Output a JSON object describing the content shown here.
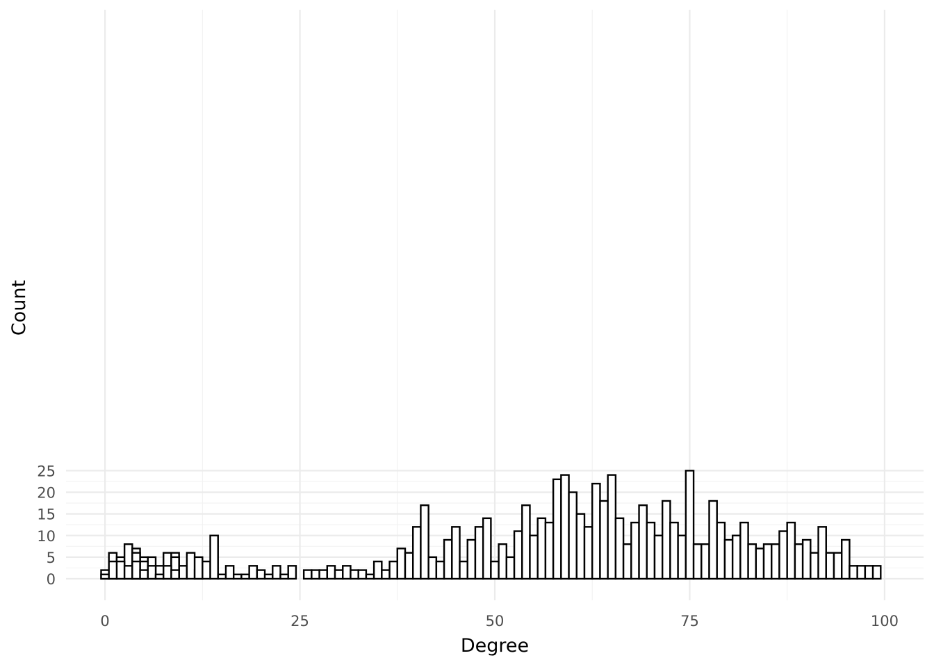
{
  "chart_data": {
    "type": "bar",
    "subtype": "histogram",
    "title": "",
    "xlabel": "Degree",
    "ylabel": "Count",
    "xlim": [
      -5,
      105
    ],
    "ylim": [
      0,
      25.6
    ],
    "x_ticks": [
      0,
      25,
      50,
      75,
      100
    ],
    "x_tick_labels": [
      "0",
      "25",
      "50",
      "75",
      "100"
    ],
    "y_ticks": [
      0,
      5,
      10,
      15,
      20,
      25
    ],
    "y_tick_labels": [
      "0",
      "5",
      "10",
      "15",
      "20",
      "25"
    ],
    "grid": true,
    "legend": "none",
    "bar_fill": "#ffffff",
    "bar_outline": "#000000",
    "series": [
      {
        "bin_width": 1,
        "x": [
          0,
          1,
          2,
          3,
          4,
          5,
          6,
          7,
          8,
          9,
          10,
          11,
          12,
          13,
          14,
          15,
          16,
          17,
          18,
          19,
          20,
          21,
          22,
          23,
          24,
          25,
          26,
          27,
          28,
          29,
          30,
          31,
          32,
          33,
          34,
          35,
          36,
          37,
          38,
          39,
          40,
          41,
          42,
          43,
          44,
          45,
          46,
          47,
          48,
          49,
          50,
          51,
          52,
          53,
          54,
          55,
          56,
          57,
          58,
          59,
          60,
          61,
          62,
          63,
          64,
          65,
          66,
          67,
          68,
          69,
          70,
          71,
          72,
          73,
          74,
          75,
          76,
          77,
          78,
          79,
          80,
          81,
          82,
          83,
          84,
          85,
          86,
          87,
          88,
          89,
          90,
          91,
          92,
          93,
          94,
          95,
          96,
          97,
          98,
          99
        ],
        "values": [
          2,
          6,
          5,
          8,
          7,
          5,
          5,
          3,
          6,
          6,
          3,
          6,
          2,
          4,
          10,
          1,
          3,
          1,
          1,
          3,
          2,
          1,
          3,
          1,
          3,
          0,
          2,
          2,
          2,
          3,
          2,
          3,
          2,
          2,
          1,
          4,
          2,
          4,
          7,
          6,
          12,
          17,
          5,
          4,
          9,
          12,
          4,
          9,
          12,
          14,
          4,
          8,
          5,
          11,
          17,
          10,
          14,
          13,
          23,
          24,
          20,
          15,
          12,
          22,
          18,
          24,
          14,
          8,
          13,
          17,
          13,
          10,
          18,
          13,
          10,
          25,
          8,
          8,
          18,
          13,
          9,
          10,
          13,
          8,
          7,
          8,
          8,
          11,
          13,
          8,
          9,
          6,
          12,
          6,
          6,
          9,
          3,
          3,
          3,
          3
        ]
      },
      {
        "bin_width": 1,
        "x": [
          0,
          2,
          3,
          4,
          5,
          9,
          12
        ],
        "values": [
          1,
          4,
          3,
          6,
          4,
          5,
          5
        ]
      },
      {
        "bin_width": 1,
        "x": [
          1,
          4,
          5,
          6,
          7,
          8,
          9
        ],
        "values": [
          4,
          4,
          2,
          3,
          1,
          3,
          2
        ]
      }
    ]
  }
}
